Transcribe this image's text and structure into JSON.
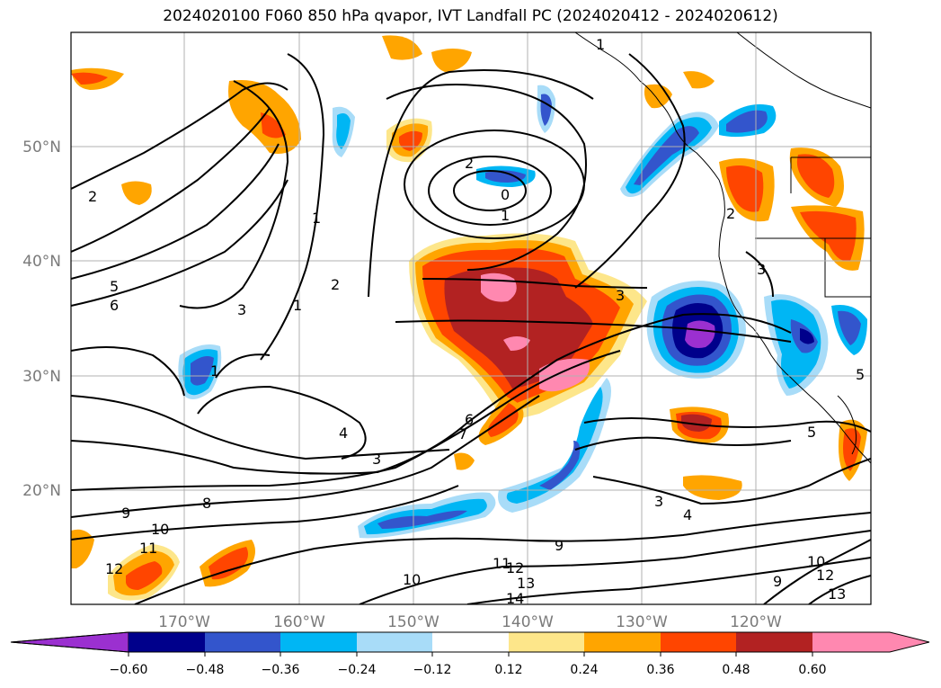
{
  "title": "2024020100 F060 850 hPa qvapor, IVT Landfall PC (2024020412 - 2024020612)",
  "lat_labels": [
    "50°N",
    "40°N",
    "30°N",
    "20°N"
  ],
  "lon_labels": [
    "170°W",
    "160°W",
    "150°W",
    "140°W",
    "130°W",
    "120°W"
  ],
  "colorbar": {
    "ticks": [
      "−0.60",
      "−0.48",
      "−0.36",
      "−0.24",
      "−0.12",
      "0.12",
      "0.24",
      "0.36",
      "0.48",
      "0.60"
    ],
    "colors": [
      "#9b30d0",
      "#00008b",
      "#3355cc",
      "#00b6f4",
      "#a8dcf8",
      "#ffffff",
      "#fde68a",
      "#ffa500",
      "#ff4500",
      "#b22222",
      "#ff88b0"
    ]
  },
  "contour_labels": [
    {
      "t": "2"
    },
    {
      "t": "0"
    },
    {
      "t": "1"
    },
    {
      "t": "1"
    },
    {
      "t": "2"
    },
    {
      "t": "3"
    },
    {
      "t": "1"
    },
    {
      "t": "5"
    },
    {
      "t": "6"
    },
    {
      "t": "2"
    },
    {
      "t": "4"
    },
    {
      "t": "3"
    },
    {
      "t": "6"
    },
    {
      "t": "7"
    },
    {
      "t": "8"
    },
    {
      "t": "9"
    },
    {
      "t": "10"
    },
    {
      "t": "11"
    },
    {
      "t": "12"
    },
    {
      "t": "10"
    },
    {
      "t": "11"
    },
    {
      "t": "12"
    },
    {
      "t": "13"
    },
    {
      "t": "14"
    },
    {
      "t": "9"
    },
    {
      "t": "3"
    },
    {
      "t": "4"
    },
    {
      "t": "3"
    },
    {
      "t": "5"
    },
    {
      "t": "9"
    },
    {
      "t": "10"
    },
    {
      "t": "12"
    },
    {
      "t": "13"
    },
    {
      "t": "1"
    },
    {
      "t": "1"
    },
    {
      "t": "2"
    },
    {
      "t": "3"
    },
    {
      "t": "5"
    }
  ]
}
